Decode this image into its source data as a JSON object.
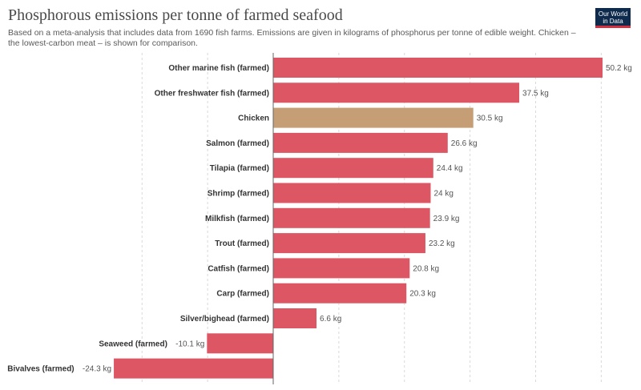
{
  "header": {
    "title": "Phosphorous emissions per tonne of farmed seafood",
    "subtitle": "Based on a meta-analysis that includes data from 1690 fish farms. Emissions are given in kilograms of phosphorus per tonne of edible weight. Chicken – the lowest-carbon meat – is shown for comparison.",
    "logo_line1": "Our World",
    "logo_line2": "in Data"
  },
  "colors": {
    "seafood": "#dc5664",
    "chicken": "#c59e75",
    "grid": "#d9d9d9",
    "axis": "#666666"
  },
  "chart_data": {
    "type": "bar",
    "orientation": "horizontal",
    "unit": "kg",
    "xlim": [
      -24.3,
      50.2
    ],
    "grid": true,
    "categories": [
      "Other marine fish (farmed)",
      "Other freshwater fish (farmed)",
      "Chicken",
      "Salmon (farmed)",
      "Tilapia (farmed)",
      "Shrimp (farmed)",
      "Milkfish (farmed)",
      "Trout (farmed)",
      "Catfish (farmed)",
      "Carp (farmed)",
      "Silver/bighead (farmed)",
      "Seaweed (farmed)",
      "Bivalves (farmed)"
    ],
    "values": [
      50.2,
      37.5,
      30.5,
      26.6,
      24.4,
      24,
      23.9,
      23.2,
      20.8,
      20.3,
      6.6,
      -10.1,
      -24.3
    ],
    "value_labels": [
      "50.2 kg",
      "37.5 kg",
      "30.5 kg",
      "26.6 kg",
      "24.4 kg",
      "24 kg",
      "23.9 kg",
      "23.2 kg",
      "20.8 kg",
      "20.3 kg",
      "6.6 kg",
      "-10.1 kg",
      "-24.3 kg"
    ],
    "highlight": "Chicken"
  }
}
